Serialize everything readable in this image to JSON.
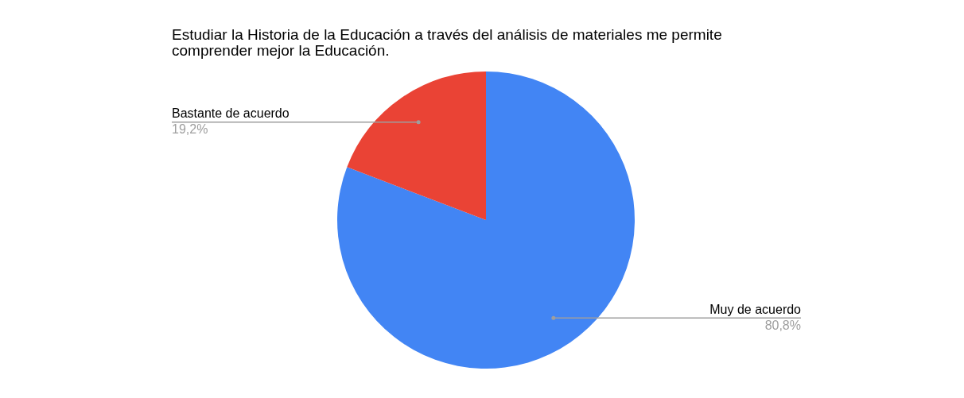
{
  "chart_data": {
    "type": "pie",
    "title": "Estudiar la Historia de la Educación a través del análisis de materiales me permite comprender mejor la Educación.",
    "categories": [
      "Muy de acuerdo",
      "Bastante de acuerdo"
    ],
    "values": [
      80.8,
      19.2
    ],
    "colors": [
      "#4285f4",
      "#ea4335"
    ],
    "value_labels": [
      "80,8%",
      "19,2%"
    ],
    "legend": false
  }
}
